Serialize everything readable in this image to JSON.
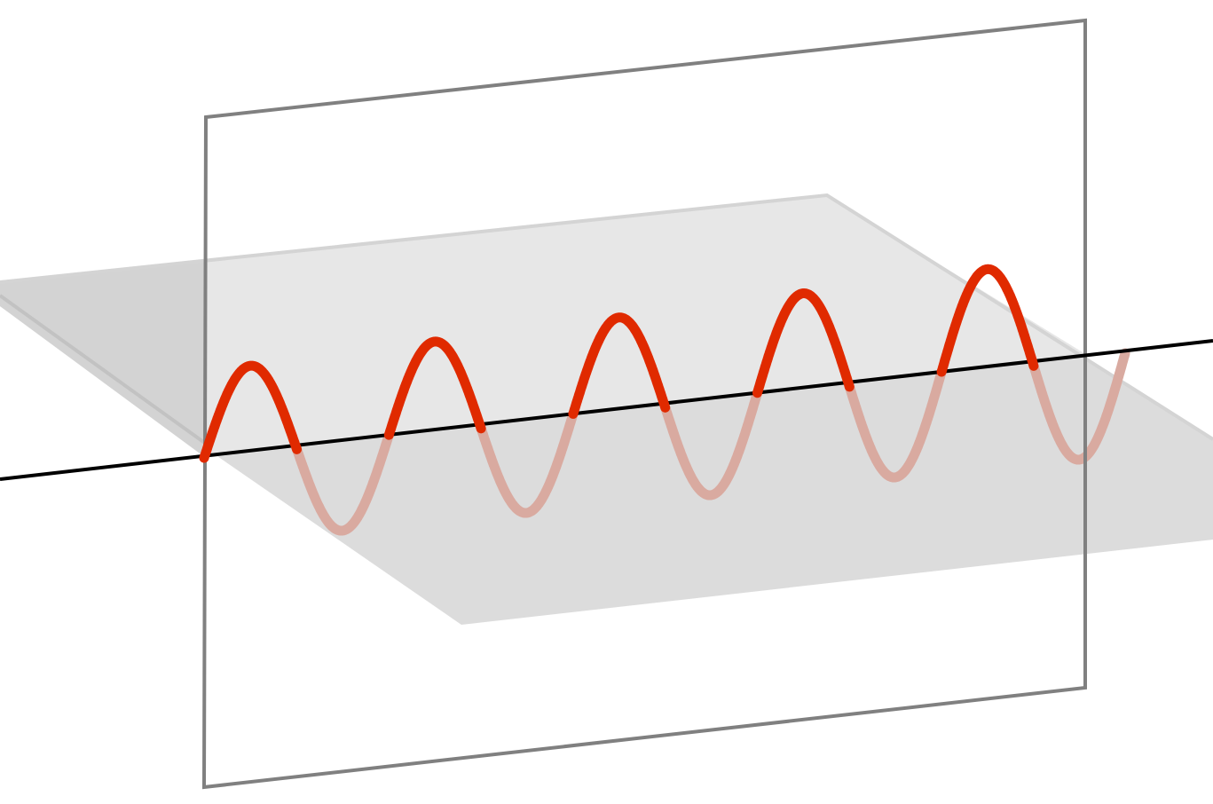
{
  "diagram": {
    "kind": "polarized-wave-illustration",
    "wave": {
      "cycles": 5,
      "color_front": "#e02a00",
      "color_back": "#d9aaa0"
    },
    "colors": {
      "background": "#ffffff",
      "horizontal_plane_fill": "#dcdcdc",
      "horizontal_plane_far_fill": "#e6e6e6",
      "horizontal_plane_edge": "#c4c4c4",
      "vertical_frame_stroke": "#7f7f7f",
      "axis": "#000000"
    }
  }
}
